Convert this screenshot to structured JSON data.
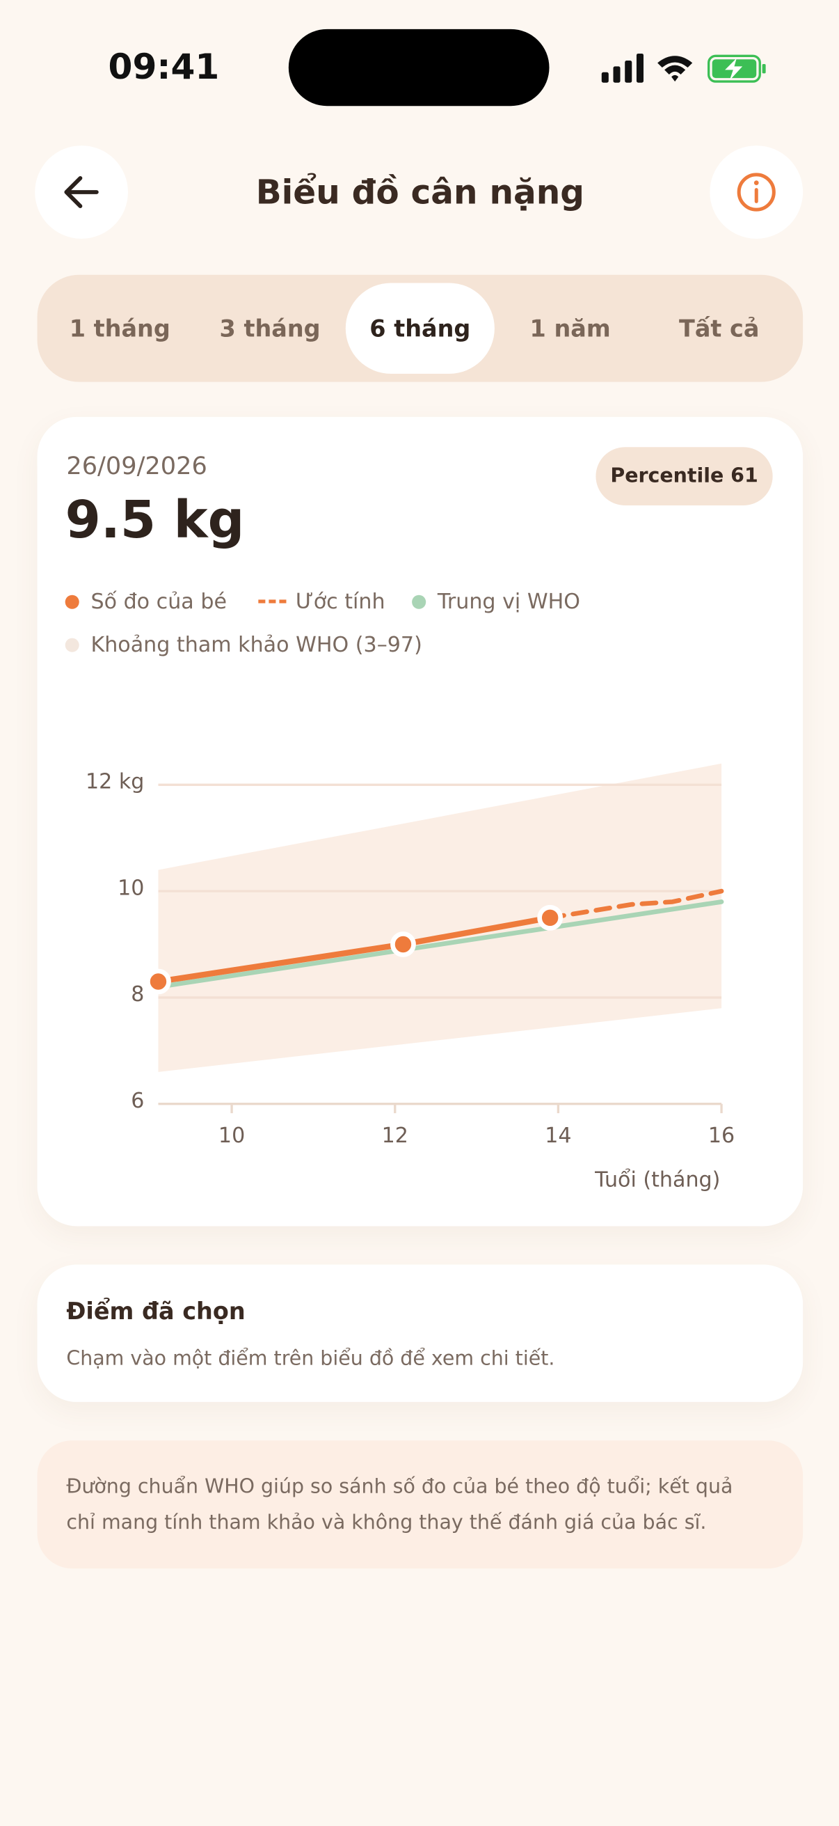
{
  "status_bar": {
    "time": "09:41"
  },
  "header": {
    "title": "Biểu đồ cân nặng"
  },
  "tabs": {
    "items": [
      "1 tháng",
      "3 tháng",
      "6 tháng",
      "1 năm",
      "Tất cả"
    ],
    "active": 2
  },
  "summary": {
    "date": "26/09/2026",
    "value": "9.5 kg",
    "percentile": "Percentile 61"
  },
  "chart_data": {
    "type": "line",
    "x_label": "Tuổi (tháng)",
    "xlim": [
      9.1,
      16
    ],
    "xticks": [
      10,
      12,
      14,
      16
    ],
    "ylim": [
      6,
      12.4
    ],
    "yticks": [
      6,
      8,
      10,
      {
        "value": 12,
        "label": "12 kg"
      }
    ],
    "grid": true,
    "band": {
      "name": "Khoảng tham khảo WHO (3–97)",
      "color": "#fbeee5",
      "x": [
        9.1,
        16
      ],
      "upper": [
        10.4,
        12.4
      ],
      "lower": [
        6.6,
        7.8
      ]
    },
    "series": [
      {
        "name": "Số đo của bé",
        "color": "#ee7b3c",
        "style": "solid-points",
        "x": [
          9.1,
          12.1,
          13.9
        ],
        "values": [
          8.3,
          9.0,
          9.5
        ]
      },
      {
        "name": "Ước tính",
        "color": "#ee7b3c",
        "style": "dashed",
        "x": [
          13.9,
          14.3,
          14.9,
          15.4,
          16
        ],
        "values": [
          9.5,
          9.6,
          9.75,
          9.8,
          10.0
        ]
      },
      {
        "name": "Trung vị WHO",
        "color": "#a9d4b5",
        "style": "solid",
        "x": [
          9.1,
          16
        ],
        "values": [
          8.2,
          9.8
        ]
      }
    ]
  },
  "selected_point": {
    "title": "Điểm đã chọn",
    "text": "Chạm vào một điểm trên biểu đồ để xem chi tiết."
  },
  "note": {
    "lines": [
      "Đường chuẩn WHO giúp so sánh số đo của bé theo độ tuổi; kết quả",
      "chỉ mang tính tham khảo và không thay thế đánh giá của bác sĩ."
    ]
  }
}
